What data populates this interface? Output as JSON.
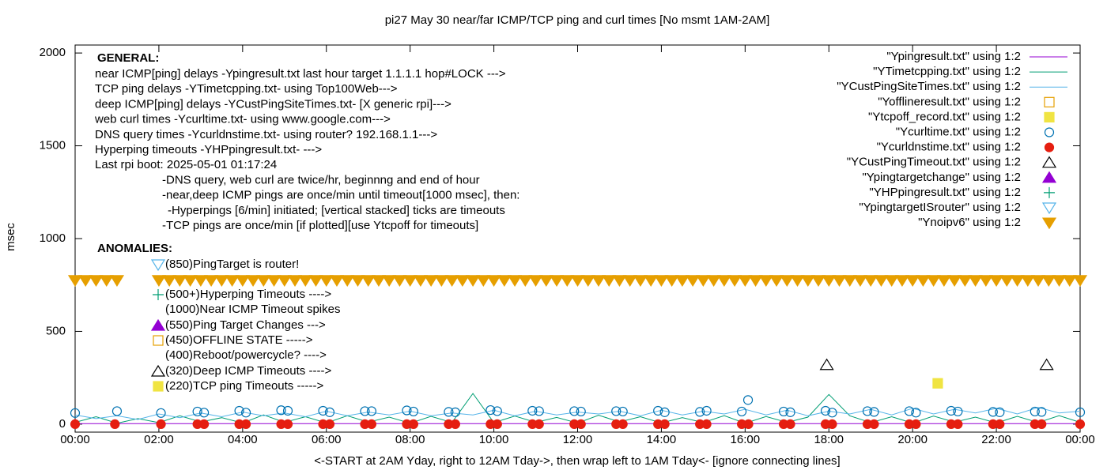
{
  "chart_data": {
    "type": "line",
    "title": "pi27 May 30  near/far ICMP/TCP ping and curl times [No msmt 1AM-2AM]",
    "x_label": "<-START at 2AM Yday, right to 12AM Tday->, then wrap left to 1AM Tday<- [ignore connecting lines]",
    "y_label": "msec",
    "xlim": [
      0,
      24
    ],
    "ylim": [
      -43,
      2043
    ],
    "xticks": [
      {
        "value": 0,
        "label": "00:00"
      },
      {
        "value": 2,
        "label": "02:00"
      },
      {
        "value": 4,
        "label": "04:00"
      },
      {
        "value": 6,
        "label": "06:00"
      },
      {
        "value": 8,
        "label": "08:00"
      },
      {
        "value": 10,
        "label": "10:00"
      },
      {
        "value": 12,
        "label": "12:00"
      },
      {
        "value": 14,
        "label": "14:00"
      },
      {
        "value": 16,
        "label": "16:00"
      },
      {
        "value": 18,
        "label": "18:00"
      },
      {
        "value": 20,
        "label": "20:00"
      },
      {
        "value": 22,
        "label": "22:00"
      },
      {
        "value": 24,
        "label": "00:00"
      }
    ],
    "yticks": [
      0,
      500,
      1000,
      1500,
      2000
    ],
    "legend": "top-right",
    "general_heading": "GENERAL:",
    "general_notes": [
      "near ICMP[ping] delays -Ypingresult.txt last hour target 1.1.1.1 hop#LOCK --->",
      "TCP ping delays -YTimetcpping.txt- using Top100Web--->",
      "deep ICMP[ping] delays -YCustPingSiteTimes.txt- [X generic rpi]--->",
      "web curl times -Ycurltime.txt- using www.google.com--->",
      "DNS query times -Ycurldnstime.txt- using router? 192.168.1.1--->",
      "Hyperping timeouts -YHPpingresult.txt- --->",
      "Last rpi boot: 2025-05-01 01:17:24",
      "-DNS query, web curl are twice/hr, beginnng and end of hour",
      "-near,deep ICMP pings are once/min until timeout[1000 msec], then:",
      "-Hyperpings [6/min] initiated; [vertical stacked] ticks are timeouts",
      "-TCP pings are once/min [if plotted][use Ytcpoff for timeouts]"
    ],
    "anomalies_heading": "ANOMALIES:",
    "anomaly_notes": [
      "(850)PingTarget is router!",
      "(500+)Hyperping Timeouts ---->",
      "(1000)Near ICMP Timeout spikes",
      "(550)Ping Target Changes --->",
      "(450)OFFLINE STATE ----->",
      "(400)Reboot/powercycle? ---->",
      "(320)Deep ICMP Timeouts ---->",
      "(220)TCP ping Timeouts ----->"
    ],
    "series": [
      {
        "name": "\"Ypingresult.txt\" using 1:2",
        "color": "#9400d3",
        "style": "line",
        "x": [
          0,
          24
        ],
        "values": [
          3,
          3
        ]
      },
      {
        "name": "\"YTimetcpping.txt\" using 1:2",
        "color": "#009e73",
        "style": "line",
        "x": [
          0,
          0.5,
          1,
          1.5,
          2,
          2.5,
          3,
          3.5,
          4,
          4.5,
          5,
          5.5,
          6,
          6.5,
          7,
          7.5,
          8,
          8.5,
          9,
          9.5,
          10,
          10.5,
          11,
          11.5,
          12,
          12.5,
          13,
          13.5,
          14,
          14.5,
          15,
          15.5,
          16,
          16.5,
          17,
          17.5,
          18,
          18.5,
          19,
          19.5,
          20,
          20.5,
          21,
          21.5,
          22,
          22.5,
          23,
          23.5,
          24
        ],
        "values": [
          10,
          40,
          5,
          30,
          8,
          45,
          12,
          35,
          6,
          50,
          10,
          40,
          7,
          45,
          11,
          38,
          5,
          42,
          9,
          165,
          8,
          44,
          10,
          36,
          6,
          48,
          12,
          40,
          7,
          35,
          9,
          46,
          5,
          41,
          10,
          38,
          160,
          45,
          8,
          40,
          6,
          44,
          11,
          38,
          7,
          42,
          9,
          46,
          10
        ]
      },
      {
        "name": "\"YCustPingSiteTimes.txt\" using 1:2",
        "color": "#56b4e9",
        "style": "line",
        "x": [
          0,
          0.5,
          1,
          1.5,
          2,
          2.5,
          3,
          3.5,
          4,
          4.5,
          5,
          5.5,
          6,
          6.5,
          7,
          7.5,
          8,
          8.5,
          9,
          9.5,
          10,
          10.5,
          11,
          11.5,
          12,
          12.5,
          13,
          13.5,
          14,
          14.5,
          15,
          15.5,
          16,
          16.5,
          17,
          17.5,
          18,
          18.5,
          19,
          19.5,
          20,
          20.5,
          21,
          21.5,
          22,
          22.5,
          23,
          23.5,
          24
        ],
        "values": [
          50,
          30,
          45,
          25,
          55,
          35,
          60,
          40,
          65,
          45,
          60,
          40,
          70,
          45,
          65,
          50,
          70,
          45,
          60,
          50,
          75,
          45,
          70,
          50,
          65,
          55,
          70,
          45,
          75,
          50,
          70,
          55,
          80,
          50,
          75,
          45,
          70,
          55,
          80,
          50,
          85,
          55,
          80,
          60,
          85,
          55,
          90,
          60,
          70
        ]
      },
      {
        "name": "\"Yofflineresult.txt\" using 1:2",
        "color": "#e69f00",
        "style": "points",
        "marker": "square-open",
        "x": [],
        "values": []
      },
      {
        "name": "\"Ytcpoff_record.txt\" using 1:2",
        "color": "#f0e442",
        "style": "points",
        "marker": "square-filled",
        "x": [
          20.6
        ],
        "values": [
          220
        ]
      },
      {
        "name": "\"Ycurltime.txt\" using 1:2",
        "color": "#0072b2",
        "style": "points",
        "marker": "circle-open",
        "x": [
          0,
          1,
          2.05,
          2.92,
          3.08,
          3.92,
          4.08,
          4.92,
          5.08,
          5.92,
          6.08,
          6.92,
          7.08,
          7.92,
          8.08,
          8.92,
          9.08,
          9.92,
          10.08,
          10.92,
          11.08,
          11.92,
          12.08,
          12.92,
          13.08,
          13.92,
          14.08,
          14.92,
          15.08,
          15.92,
          16.07,
          16.92,
          17.08,
          17.92,
          18.08,
          18.92,
          19.08,
          19.92,
          20.08,
          20.92,
          21.08,
          21.92,
          22.08,
          22.92,
          23.08,
          24
        ],
        "values": [
          60,
          70,
          60,
          68,
          62,
          72,
          62,
          75,
          72,
          72,
          64,
          70,
          70,
          74,
          68,
          66,
          64,
          76,
          70,
          72,
          70,
          70,
          68,
          70,
          68,
          72,
          64,
          66,
          72,
          68,
          130,
          68,
          64,
          72,
          62,
          70,
          66,
          70,
          62,
          72,
          68,
          66,
          64,
          68,
          66,
          64
        ]
      },
      {
        "name": "\"Ycurldnstime.txt\" using 1:2",
        "color": "#e51e10",
        "style": "points",
        "marker": "circle-filled",
        "x": [
          0,
          0.95,
          2.05,
          2.92,
          3.08,
          3.92,
          4.08,
          4.92,
          5.08,
          5.92,
          6.08,
          6.92,
          7.08,
          7.92,
          8.08,
          8.92,
          9.08,
          9.92,
          10.08,
          10.92,
          11.08,
          11.92,
          12.08,
          12.92,
          13.08,
          13.92,
          14.08,
          14.92,
          15.08,
          15.92,
          16.08,
          16.92,
          17.08,
          17.92,
          18.08,
          18.92,
          19.08,
          19.92,
          20.08,
          20.92,
          21.08,
          21.92,
          22.08,
          22.92,
          23.08,
          24
        ],
        "values": [
          0,
          0,
          0,
          0,
          0,
          0,
          0,
          0,
          0,
          0,
          0,
          0,
          0,
          0,
          0,
          0,
          0,
          0,
          0,
          0,
          0,
          0,
          0,
          0,
          0,
          0,
          0,
          0,
          0,
          0,
          0,
          0,
          0,
          0,
          0,
          0,
          0,
          0,
          0,
          0,
          0,
          0,
          0,
          0,
          0,
          0
        ]
      },
      {
        "name": "\"YCustPingTimeout.txt\" using 1:2",
        "color": "#000000",
        "style": "points",
        "marker": "triangle-open",
        "x": [
          17.95,
          23.2
        ],
        "values": [
          320,
          320
        ]
      },
      {
        "name": "\"Ypingtargetchange\" using 1:2",
        "color": "#9400d3",
        "style": "points",
        "marker": "triangle-filled",
        "x": [],
        "values": []
      },
      {
        "name": "\"YHPpingresult.txt\" using 1:2",
        "color": "#009e73",
        "style": "points",
        "marker": "plus",
        "x": [],
        "values": []
      },
      {
        "name": "\"YpingtargetISrouter\" using 1:2",
        "color": "#56b4e9",
        "style": "points",
        "marker": "triangle-down-open",
        "x": [],
        "values": []
      },
      {
        "name": "\"Ynoipv6\" using 1:2",
        "color": "#e69f00",
        "style": "points",
        "marker": "triangle-down-filled",
        "x": [
          0,
          0.25,
          0.5,
          0.75,
          1,
          2,
          2.25,
          2.5,
          2.75,
          3,
          3.25,
          3.5,
          3.75,
          4,
          4.25,
          4.5,
          4.75,
          5,
          5.25,
          5.5,
          5.75,
          6,
          6.25,
          6.5,
          6.75,
          7,
          7.25,
          7.5,
          7.75,
          8,
          8.25,
          8.5,
          8.75,
          9,
          9.25,
          9.5,
          9.75,
          10,
          10.25,
          10.5,
          10.75,
          11,
          11.25,
          11.5,
          11.75,
          12,
          12.25,
          12.5,
          12.75,
          13,
          13.25,
          13.5,
          13.75,
          14,
          14.25,
          14.5,
          14.75,
          15,
          15.25,
          15.5,
          15.75,
          16,
          16.25,
          16.5,
          16.75,
          17,
          17.25,
          17.5,
          17.75,
          18,
          18.25,
          18.5,
          18.75,
          19,
          19.25,
          19.5,
          19.75,
          20,
          20.25,
          20.5,
          20.75,
          21,
          21.25,
          21.5,
          21.75,
          22,
          22.25,
          22.5,
          22.75,
          23,
          23.25,
          23.5,
          23.75,
          24
        ],
        "values": [
          775,
          775,
          775,
          775,
          775,
          775,
          775,
          775,
          775,
          775,
          775,
          775,
          775,
          775,
          775,
          775,
          775,
          775,
          775,
          775,
          775,
          775,
          775,
          775,
          775,
          775,
          775,
          775,
          775,
          775,
          775,
          775,
          775,
          775,
          775,
          775,
          775,
          775,
          775,
          775,
          775,
          775,
          775,
          775,
          775,
          775,
          775,
          775,
          775,
          775,
          775,
          775,
          775,
          775,
          775,
          775,
          775,
          775,
          775,
          775,
          775,
          775,
          775,
          775,
          775,
          775,
          775,
          775,
          775,
          775,
          775,
          775,
          775,
          775,
          775,
          775,
          775,
          775,
          775,
          775,
          775,
          775,
          775,
          775,
          775,
          775,
          775,
          775,
          775,
          775,
          775,
          775,
          775,
          775
        ]
      }
    ]
  }
}
